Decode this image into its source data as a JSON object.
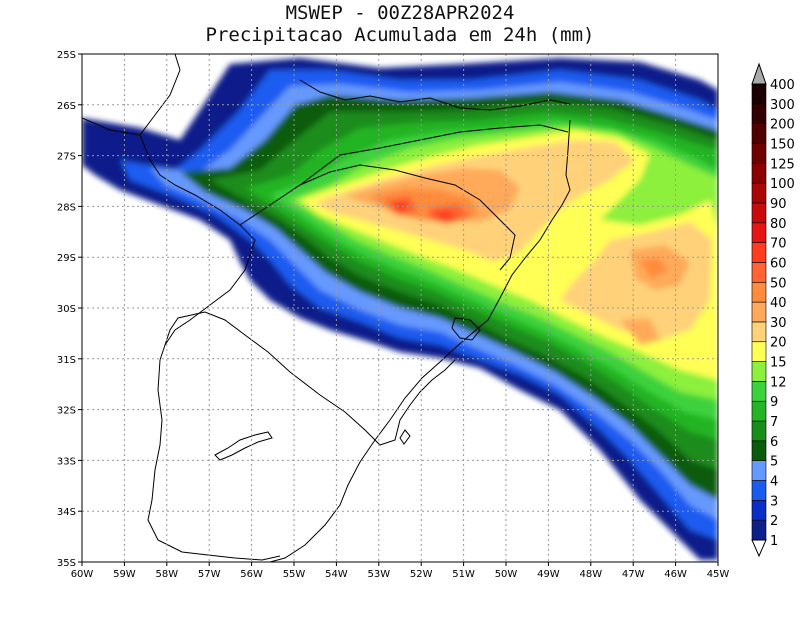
{
  "title": {
    "line1": "MSWEP - 00Z28APR2024",
    "line2": "Precipitacao Acumulada em 24h (mm)"
  },
  "map": {
    "lon_labels": [
      "60W",
      "59W",
      "58W",
      "57W",
      "56W",
      "55W",
      "54W",
      "53W",
      "52W",
      "51W",
      "50W",
      "49W",
      "48W",
      "47W",
      "46W",
      "45W"
    ],
    "lat_labels": [
      "25S",
      "26S",
      "27S",
      "28S",
      "29S",
      "30S",
      "31S",
      "32S",
      "33S",
      "34S",
      "35S"
    ],
    "lon_range": [
      -60,
      -45
    ],
    "lat_range": [
      -35,
      -25
    ],
    "gridlines": true,
    "field": "24h accumulated precipitation, heaviest over northern Rio Grande do Sul (~70-80 mm)"
  },
  "colorbar": {
    "levels": [
      "1",
      "2",
      "3",
      "4",
      "5",
      "6",
      "7",
      "9",
      "12",
      "15",
      "20",
      "30",
      "40",
      "50",
      "60",
      "70",
      "80",
      "90",
      "100",
      "125",
      "150",
      "200",
      "300",
      "400"
    ],
    "colors": [
      "#ffffff",
      "#0d1f8a",
      "#0a2fc8",
      "#1a5cf0",
      "#6699ff",
      "#0a5c0a",
      "#1a8c1a",
      "#24b424",
      "#3cd23c",
      "#8cf03c",
      "#ffff55",
      "#ffd27a",
      "#ffaa5a",
      "#ff8c3c",
      "#ff6432",
      "#ff3c1e",
      "#e61414",
      "#c80a0a",
      "#aa0505",
      "#8c0000",
      "#6e0000",
      "#500000",
      "#320000",
      "#1a0000"
    ]
  }
}
